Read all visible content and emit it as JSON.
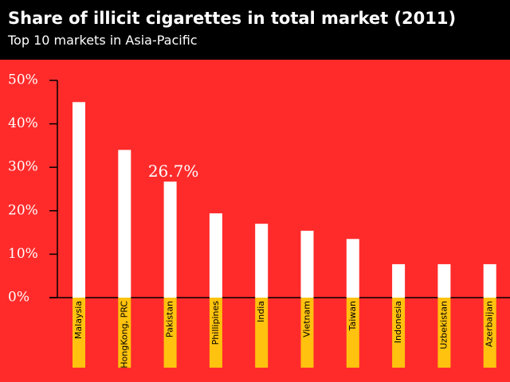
{
  "chart_data": {
    "type": "bar",
    "title": "Share of illicit cigarettes in total market (2011)",
    "subtitle": "Top 10 markets in Asia-Pacific",
    "categories": [
      "Malaysia",
      "HongKong, PRC",
      "Pakistan",
      "Phillipines",
      "India",
      "Vietnam",
      "Taiwan",
      "Indonesia",
      "Uzbekistan",
      "Azerbaijan"
    ],
    "values": [
      45,
      34,
      26.7,
      19.4,
      17,
      15.4,
      13.5,
      7.7,
      7.7,
      7.7
    ],
    "value_labels": [
      null,
      null,
      "26.7%",
      null,
      null,
      null,
      null,
      null,
      null,
      null
    ],
    "color": "#ffffff",
    "ylim": [
      0,
      50
    ],
    "yticks": [
      {
        "value": 0,
        "label": "0%"
      },
      {
        "value": 10,
        "label": "10%"
      },
      {
        "value": 20,
        "label": "20%"
      },
      {
        "value": 30,
        "label": "30%"
      },
      {
        "value": 40,
        "label": "40%"
      },
      {
        "value": 50,
        "label": "50%"
      }
    ],
    "grid": false
  }
}
